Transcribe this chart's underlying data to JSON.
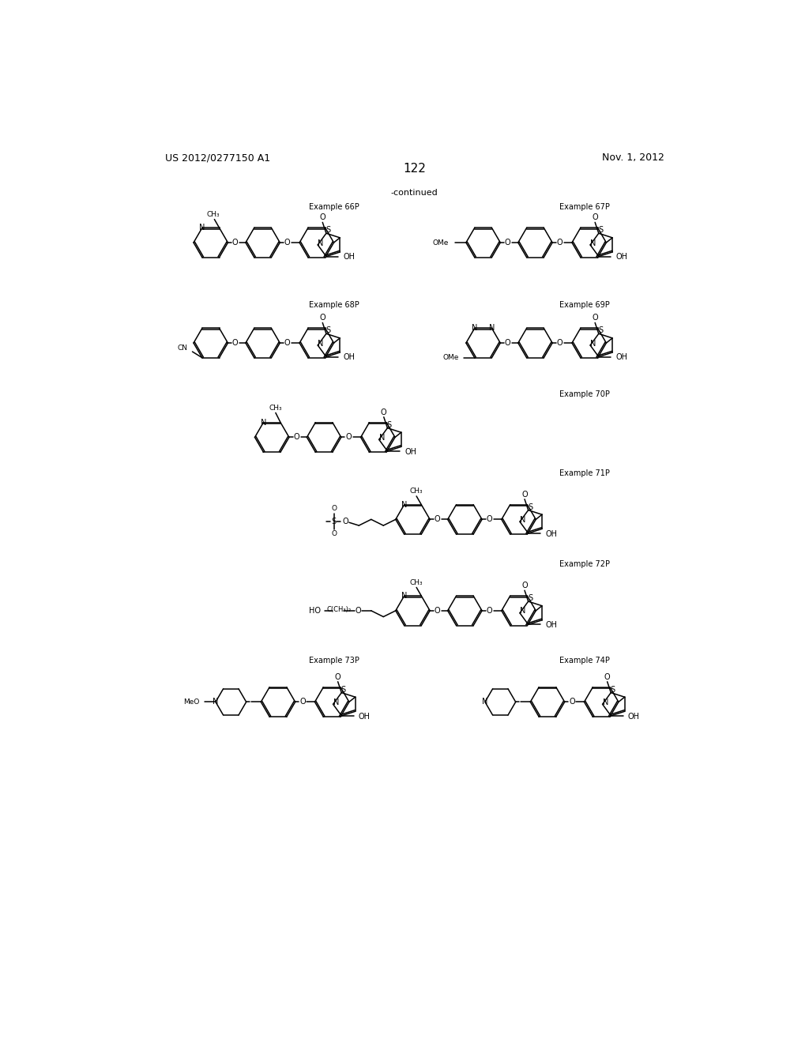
{
  "page_header_left": "US 2012/0277150 A1",
  "page_header_right": "Nov. 1, 2012",
  "page_number": "122",
  "continued_text": "-continued",
  "background_color": "#ffffff",
  "text_color": "#000000"
}
